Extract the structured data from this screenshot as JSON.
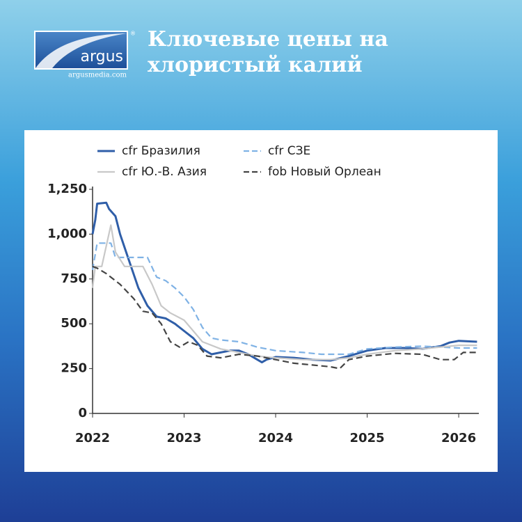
{
  "header": {
    "logo": "argus",
    "logo_mark": "®",
    "url": "argusmedia.com",
    "title_lines": [
      "Ключевые цены на",
      "хлористый калий"
    ]
  },
  "chart_data": {
    "type": "line",
    "xlim": [
      2022,
      2026.22
    ],
    "ylim": [
      0,
      1250
    ],
    "xticks": [
      2022,
      2023,
      2024,
      2025,
      2026
    ],
    "yticks": [
      0,
      250,
      500,
      750,
      {
        "value": 1000,
        "label": "1,000"
      },
      {
        "value": 1250,
        "label": "1,250"
      }
    ],
    "legend_columns": 2,
    "series": [
      {
        "name": "cfr Бразилия",
        "color": "#2f5ea8",
        "dashed": false,
        "x": [
          2022,
          2022.03,
          2022.05,
          2022.15,
          2022.18,
          2022.25,
          2022.3,
          2022.4,
          2022.5,
          2022.6,
          2022.7,
          2022.8,
          2022.9,
          2023,
          2023.1,
          2023.2,
          2023.3,
          2023.4,
          2023.5,
          2023.6,
          2023.7,
          2023.8,
          2023.85,
          2023.9,
          2024,
          2024.2,
          2024.4,
          2024.6,
          2024.8,
          2025,
          2025.2,
          2025.4,
          2025.6,
          2025.8,
          2025.9,
          2026,
          2026.2
        ],
        "values": [
          1000,
          1080,
          1170,
          1175,
          1140,
          1100,
          1000,
          850,
          700,
          600,
          540,
          530,
          500,
          460,
          420,
          360,
          330,
          340,
          350,
          350,
          330,
          300,
          285,
          300,
          315,
          310,
          300,
          295,
          320,
          350,
          365,
          365,
          360,
          375,
          395,
          405,
          400
        ]
      },
      {
        "name": "cfr СЗЕ",
        "color": "#7fb2e5",
        "dashed": true,
        "x": [
          2022,
          2022.05,
          2022.2,
          2022.25,
          2022.6,
          2022.7,
          2022.8,
          2022.9,
          2023,
          2023.1,
          2023.2,
          2023.3,
          2023.4,
          2023.6,
          2023.8,
          2024,
          2024.3,
          2024.5,
          2024.8,
          2025,
          2025.3,
          2025.6,
          2025.8,
          2026,
          2026.2
        ],
        "values": [
          800,
          950,
          950,
          870,
          870,
          760,
          740,
          700,
          650,
          580,
          480,
          420,
          410,
          400,
          370,
          350,
          340,
          330,
          330,
          360,
          370,
          375,
          370,
          365,
          365
        ]
      },
      {
        "name": "cfr Ю.-В. Азия",
        "color": "#c8c8c8",
        "dashed": false,
        "x": [
          2022,
          2022.03,
          2022.1,
          2022.2,
          2022.25,
          2022.35,
          2022.55,
          2022.65,
          2022.75,
          2022.85,
          2023,
          2023.1,
          2023.2,
          2023.4,
          2023.6,
          2023.8,
          2024,
          2024.3,
          2024.6,
          2024.8,
          2025,
          2025.3,
          2025.6,
          2025.8,
          2026,
          2026.2
        ],
        "values": [
          700,
          820,
          820,
          1050,
          900,
          820,
          820,
          720,
          600,
          560,
          520,
          460,
          400,
          360,
          340,
          320,
          310,
          300,
          300,
          310,
          330,
          350,
          360,
          370,
          380,
          380
        ]
      },
      {
        "name": "fob Новый Орлеан",
        "color": "#444444",
        "dashed": true,
        "x": [
          2022,
          2022.05,
          2022.15,
          2022.3,
          2022.45,
          2022.55,
          2022.65,
          2022.75,
          2022.85,
          2022.95,
          2023.05,
          2023.15,
          2023.25,
          2023.4,
          2023.6,
          2023.8,
          2024,
          2024.2,
          2024.4,
          2024.6,
          2024.7,
          2024.8,
          2025,
          2025.3,
          2025.6,
          2025.8,
          2025.95,
          2026.05,
          2026.2
        ],
        "values": [
          820,
          810,
          780,
          720,
          640,
          570,
          560,
          500,
          400,
          370,
          400,
          380,
          320,
          310,
          330,
          320,
          300,
          280,
          270,
          260,
          250,
          300,
          320,
          335,
          330,
          300,
          300,
          340,
          340
        ]
      }
    ]
  }
}
